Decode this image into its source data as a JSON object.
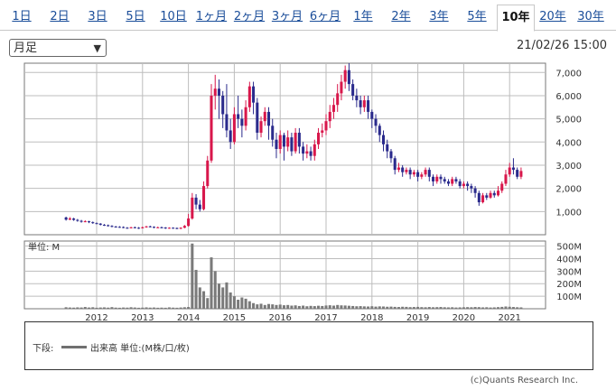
{
  "tabs": [
    {
      "label": "1日"
    },
    {
      "label": "2日"
    },
    {
      "label": "3日"
    },
    {
      "label": "5日"
    },
    {
      "label": "10日"
    },
    {
      "label": "1ヶ月"
    },
    {
      "label": "2ヶ月"
    },
    {
      "label": "3ヶ月"
    },
    {
      "label": "6ヶ月"
    },
    {
      "label": "1年"
    },
    {
      "label": "2年"
    },
    {
      "label": "3年"
    },
    {
      "label": "5年"
    },
    {
      "label": "10年",
      "active": true
    },
    {
      "label": "20年"
    },
    {
      "label": "30年"
    }
  ],
  "period_select": {
    "value": "月足"
  },
  "datetime": "21/02/26 15:00",
  "legend": {
    "prefix": "下段:",
    "text": "出来高 単位:(M株/口/枚)"
  },
  "copyright": "(c)Quants Research Inc.",
  "colors": {
    "up": "#d8174b",
    "down": "#2a2a8c",
    "volume": "#7a7a7a",
    "grid": "#bdbdbd"
  },
  "chart_data": [
    {
      "type": "candlestick",
      "title": "",
      "x_tick_labels": [
        "2012",
        "2013",
        "2014",
        "2015",
        "2016",
        "2017",
        "2018",
        "2019",
        "2020",
        "2021"
      ],
      "y_tick_labels": [
        "1,000",
        "2,000",
        "3,000",
        "4,000",
        "5,000",
        "6,000",
        "7,000"
      ],
      "ylim": [
        0,
        7400
      ],
      "grid": true,
      "x_start": "2011-05",
      "candles": [
        [
          744,
          650,
          780,
          610
        ],
        [
          650,
          700,
          760,
          630
        ],
        [
          700,
          640,
          730,
          600
        ],
        [
          640,
          600,
          680,
          560
        ],
        [
          600,
          560,
          640,
          520
        ],
        [
          560,
          580,
          620,
          540
        ],
        [
          580,
          540,
          600,
          500
        ],
        [
          540,
          500,
          570,
          470
        ],
        [
          500,
          480,
          530,
          450
        ],
        [
          480,
          430,
          500,
          400
        ],
        [
          430,
          410,
          460,
          380
        ],
        [
          410,
          380,
          440,
          350
        ],
        [
          380,
          350,
          410,
          320
        ],
        [
          350,
          340,
          380,
          310
        ],
        [
          340,
          330,
          370,
          300
        ],
        [
          330,
          300,
          360,
          280
        ],
        [
          300,
          290,
          330,
          260
        ],
        [
          290,
          320,
          340,
          270
        ],
        [
          320,
          300,
          350,
          280
        ],
        [
          300,
          280,
          330,
          250
        ],
        [
          280,
          320,
          350,
          270
        ],
        [
          320,
          360,
          380,
          300
        ],
        [
          360,
          340,
          390,
          320
        ],
        [
          340,
          300,
          360,
          280
        ],
        [
          300,
          320,
          350,
          290
        ],
        [
          320,
          310,
          350,
          280
        ],
        [
          310,
          280,
          330,
          250
        ],
        [
          280,
          300,
          320,
          260
        ],
        [
          300,
          290,
          320,
          260
        ],
        [
          290,
          260,
          310,
          240
        ],
        [
          260,
          300,
          320,
          240
        ],
        [
          300,
          380,
          420,
          280
        ],
        [
          380,
          700,
          900,
          350
        ],
        [
          700,
          1600,
          1800,
          650
        ],
        [
          1600,
          1300,
          1750,
          1100
        ],
        [
          1300,
          1100,
          1500,
          1000
        ],
        [
          1100,
          2100,
          2300,
          1050
        ],
        [
          2100,
          3200,
          3400,
          2000
        ],
        [
          3200,
          6000,
          6500,
          3100
        ],
        [
          6000,
          6300,
          6900,
          5400
        ],
        [
          6300,
          6000,
          6700,
          5000
        ],
        [
          6000,
          5200,
          6200,
          4600
        ],
        [
          5200,
          4500,
          6500,
          4200
        ],
        [
          4500,
          4000,
          5000,
          3700
        ],
        [
          4000,
          5200,
          5500,
          3900
        ],
        [
          5200,
          5000,
          6000,
          4600
        ],
        [
          5000,
          4700,
          5400,
          4200
        ],
        [
          4700,
          5500,
          5800,
          4500
        ],
        [
          5500,
          6400,
          6600,
          5300
        ],
        [
          6400,
          5700,
          6600,
          5200
        ],
        [
          5700,
          4400,
          5900,
          4100
        ],
        [
          4400,
          4900,
          5100,
          4200
        ],
        [
          4900,
          5300,
          5500,
          4700
        ],
        [
          5300,
          4700,
          5500,
          4100
        ],
        [
          4700,
          4100,
          5000,
          3800
        ],
        [
          4100,
          3700,
          4400,
          3300
        ],
        [
          3700,
          4300,
          4500,
          3500
        ],
        [
          4300,
          3800,
          4400,
          3200
        ],
        [
          3800,
          4200,
          4500,
          3600
        ],
        [
          4200,
          3600,
          4400,
          3400
        ],
        [
          3600,
          4400,
          4600,
          3500
        ],
        [
          4400,
          3800,
          4600,
          3500
        ],
        [
          3800,
          3500,
          4000,
          3200
        ],
        [
          3500,
          3600,
          3900,
          3300
        ],
        [
          3600,
          3400,
          3800,
          3200
        ],
        [
          3400,
          3900,
          4100,
          3200
        ],
        [
          3900,
          4400,
          4600,
          3700
        ],
        [
          4400,
          4500,
          4800,
          4200
        ],
        [
          4500,
          4900,
          5200,
          4300
        ],
        [
          4900,
          5300,
          5600,
          4600
        ],
        [
          5300,
          5600,
          5900,
          5000
        ],
        [
          5600,
          6100,
          6500,
          5300
        ],
        [
          6100,
          6600,
          6900,
          5800
        ],
        [
          6600,
          7100,
          7300,
          6300
        ],
        [
          7100,
          6500,
          7400,
          6200
        ],
        [
          6500,
          6000,
          6700,
          5800
        ],
        [
          6000,
          5800,
          6300,
          5500
        ],
        [
          5800,
          5500,
          6000,
          5200
        ],
        [
          5500,
          5800,
          6000,
          5300
        ],
        [
          5800,
          5300,
          6000,
          5000
        ],
        [
          5300,
          5000,
          5400,
          4600
        ],
        [
          5000,
          4700,
          5200,
          4400
        ],
        [
          4700,
          4300,
          4800,
          4000
        ],
        [
          4300,
          3900,
          4500,
          3600
        ],
        [
          3900,
          3600,
          4100,
          3300
        ],
        [
          3600,
          3300,
          3700,
          3100
        ],
        [
          3300,
          2800,
          3400,
          2600
        ],
        [
          2800,
          2900,
          3100,
          2700
        ],
        [
          2900,
          2700,
          3000,
          2500
        ],
        [
          2700,
          2800,
          2900,
          2600
        ],
        [
          2800,
          2600,
          2900,
          2400
        ],
        [
          2600,
          2700,
          2800,
          2500
        ],
        [
          2700,
          2500,
          2800,
          2300
        ],
        [
          2500,
          2600,
          2700,
          2400
        ],
        [
          2600,
          2800,
          2900,
          2500
        ],
        [
          2800,
          2500,
          2900,
          2300
        ],
        [
          2500,
          2300,
          2600,
          2100
        ],
        [
          2300,
          2500,
          2600,
          2200
        ],
        [
          2500,
          2400,
          2600,
          2200
        ],
        [
          2400,
          2300,
          2500,
          2200
        ],
        [
          2300,
          2200,
          2400,
          2100
        ],
        [
          2200,
          2400,
          2500,
          2100
        ],
        [
          2400,
          2300,
          2500,
          2200
        ],
        [
          2300,
          2100,
          2400,
          2000
        ],
        [
          2100,
          2200,
          2300,
          2000
        ],
        [
          2200,
          2100,
          2300,
          1900
        ],
        [
          2100,
          2000,
          2200,
          1800
        ],
        [
          2000,
          1800,
          2100,
          1600
        ],
        [
          1800,
          1400,
          1900,
          1250
        ],
        [
          1400,
          1700,
          1800,
          1350
        ],
        [
          1700,
          1600,
          1800,
          1500
        ],
        [
          1600,
          1800,
          1900,
          1550
        ],
        [
          1800,
          1700,
          1900,
          1600
        ],
        [
          1700,
          1900,
          2100,
          1650
        ],
        [
          1900,
          2200,
          2300,
          1800
        ],
        [
          2200,
          2600,
          2800,
          2100
        ],
        [
          2600,
          2900,
          3100,
          2500
        ],
        [
          2900,
          2800,
          3300,
          2600
        ],
        [
          2800,
          2500,
          2900,
          2400
        ],
        [
          2500,
          2750,
          2900,
          2400
        ]
      ],
      "volume": {
        "unit_label": "単位: M",
        "y_tick_labels": [
          "100M",
          "200M",
          "300M",
          "400M",
          "500M"
        ],
        "ylim": [
          0,
          540
        ],
        "values": [
          12,
          10,
          9,
          11,
          10,
          14,
          10,
          12,
          8,
          10,
          11,
          9,
          13,
          9,
          8,
          10,
          9,
          12,
          10,
          8,
          9,
          11,
          9,
          10,
          8,
          9,
          8,
          11,
          9,
          8,
          10,
          12,
          14,
          520,
          310,
          170,
          140,
          85,
          410,
          300,
          200,
          170,
          210,
          130,
          100,
          72,
          90,
          80,
          60,
          45,
          35,
          40,
          30,
          38,
          35,
          30,
          33,
          28,
          30,
          25,
          27,
          22,
          25,
          20,
          23,
          21,
          24,
          22,
          26,
          28,
          25,
          30,
          27,
          26,
          24,
          22,
          20,
          21,
          19,
          18,
          20,
          17,
          19,
          18,
          16,
          17,
          15,
          14,
          16,
          15,
          13,
          14,
          15,
          13,
          12,
          14,
          12,
          13,
          14,
          12,
          11,
          12,
          10,
          11,
          12,
          13,
          12,
          14,
          13,
          11,
          12,
          10,
          11,
          13,
          15,
          18,
          16,
          14,
          12,
          11
        ]
      }
    }
  ]
}
